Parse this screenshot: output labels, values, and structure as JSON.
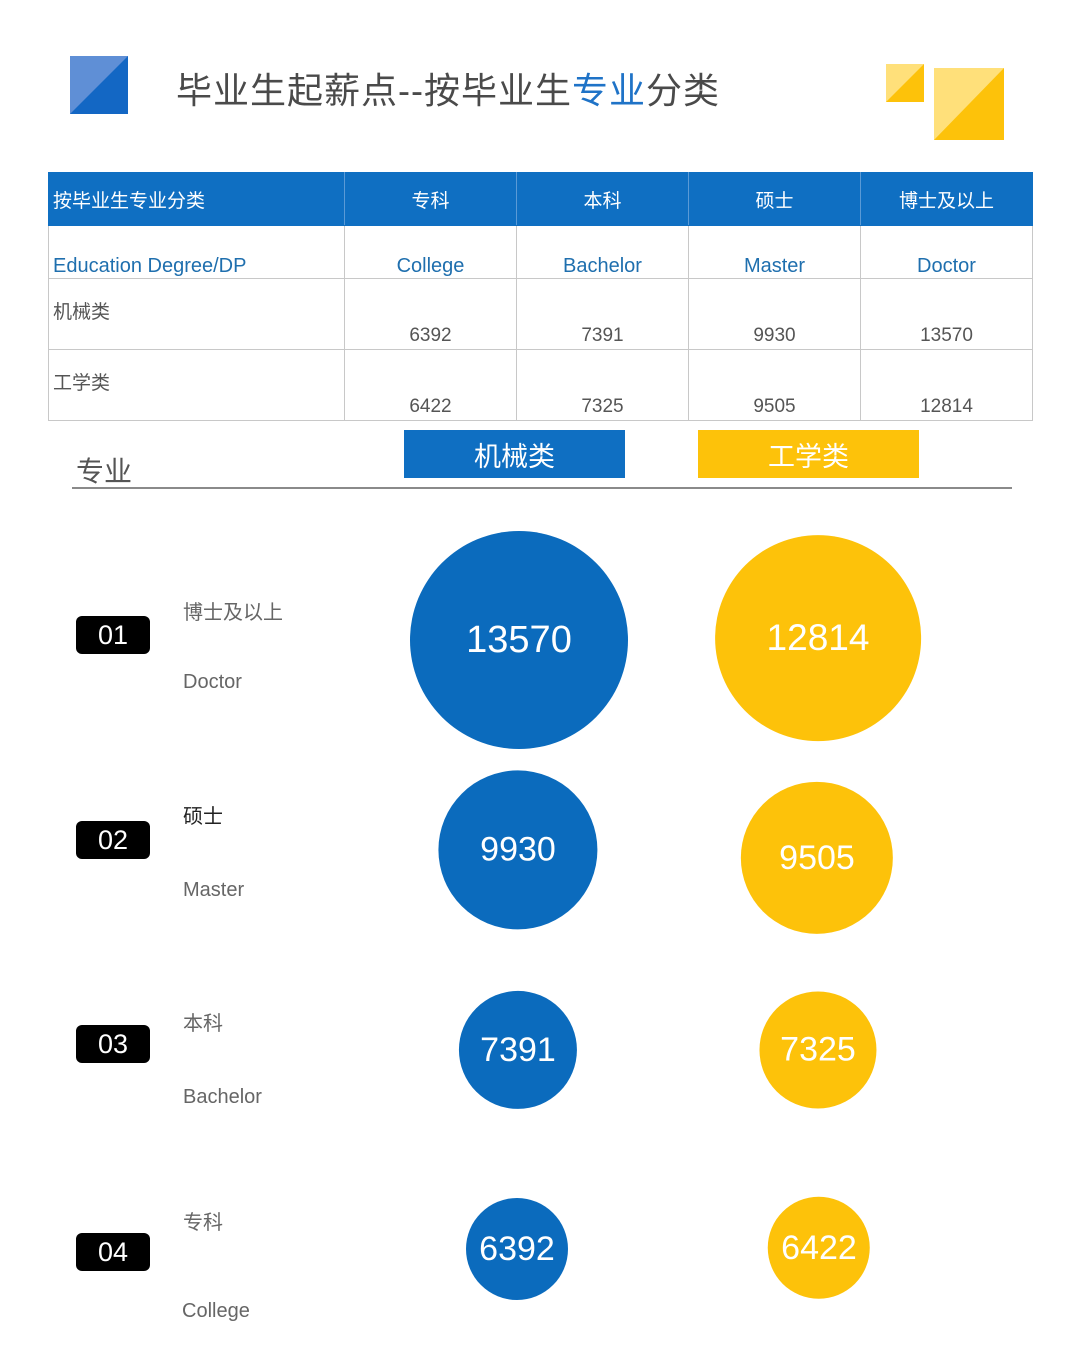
{
  "header": {
    "title_pre": "毕业生起薪点--按毕业生",
    "title_accent": "专业",
    "title_post": "分类"
  },
  "colors": {
    "blue": "#0b6bbd",
    "yellow": "#fdc20a"
  },
  "table": {
    "columns": [
      "按毕业生专业分类",
      "专科",
      "本科",
      "硕士",
      "博士及以上"
    ],
    "english_row": [
      "Education  Degree/DP",
      "College",
      "Bachelor",
      "Master",
      "Doctor"
    ],
    "rows": [
      {
        "label": "机械类",
        "values": [
          "6392",
          "7391",
          "9930",
          "13570"
        ]
      },
      {
        "label": "工学类",
        "values": [
          "6422",
          "7325",
          "9505",
          "12814"
        ]
      }
    ]
  },
  "legend": {
    "section": "专业",
    "mech": "机械类",
    "eng": "工学类"
  },
  "chart_data": {
    "type": "bubble",
    "title": "毕业生起薪点--按毕业生专业分类",
    "categories": [
      "博士及以上 Doctor",
      "硕士 Master",
      "本科 Bachelor",
      "专科 College"
    ],
    "series": [
      {
        "name": "机械类",
        "values": [
          13570,
          9930,
          7391,
          6392
        ]
      },
      {
        "name": "工学类",
        "values": [
          12814,
          9505,
          7325,
          6422
        ]
      }
    ]
  },
  "rows": [
    {
      "num": "01",
      "cn": "博士及以上",
      "en": "Doctor",
      "mech": "13570",
      "eng": "12814"
    },
    {
      "num": "02",
      "cn": "硕士",
      "en": "Master",
      "mech": "9930",
      "eng": "9505"
    },
    {
      "num": "03",
      "cn": "本科",
      "en": "Bachelor",
      "mech": "7391",
      "eng": "7325"
    },
    {
      "num": "04",
      "cn": "专科",
      "en": "College",
      "mech": "6392",
      "eng": "6422"
    }
  ]
}
